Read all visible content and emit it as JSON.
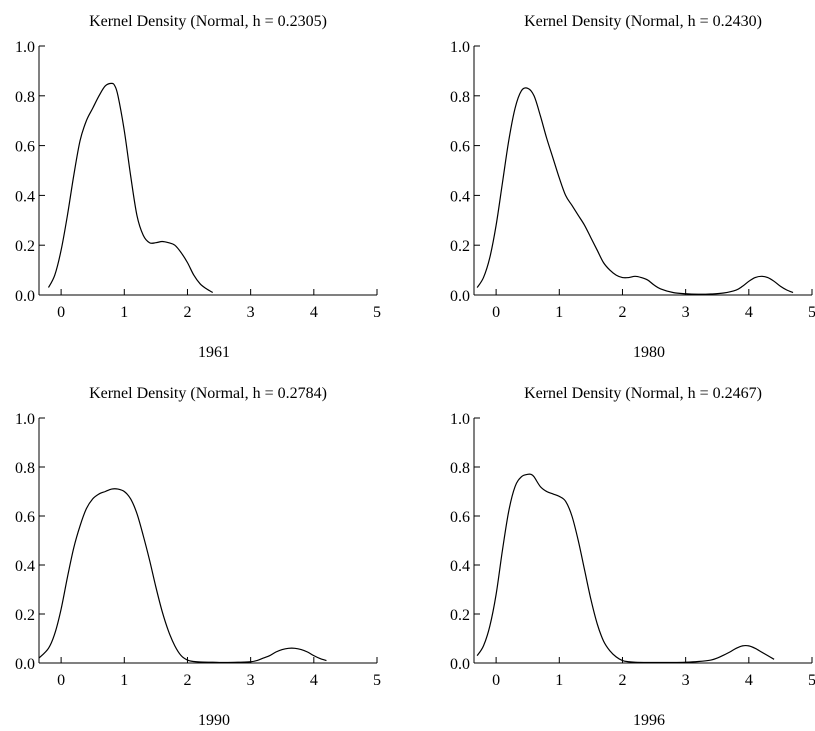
{
  "chart_data": [
    {
      "type": "line",
      "title": "Kernel Density (Normal, h = 0.2305)",
      "xlabel": "1961",
      "ylabel": "",
      "xlim": [
        -0.35,
        5
      ],
      "ylim": [
        0,
        1
      ],
      "xticks": [
        "0",
        "1",
        "2",
        "3",
        "4",
        "5"
      ],
      "yticks": [
        "0.0",
        "0.2",
        "0.4",
        "0.6",
        "0.8",
        "1.0"
      ],
      "grid": false,
      "series": [
        {
          "x": [
            -0.2,
            -0.1,
            0.0,
            0.1,
            0.2,
            0.3,
            0.4,
            0.5,
            0.6,
            0.7,
            0.8,
            0.85,
            0.9,
            1.0,
            1.1,
            1.2,
            1.3,
            1.4,
            1.5,
            1.6,
            1.7,
            1.8,
            1.9,
            2.0,
            2.1,
            2.2,
            2.3,
            2.4
          ],
          "y": [
            0.03,
            0.08,
            0.18,
            0.32,
            0.48,
            0.62,
            0.7,
            0.75,
            0.8,
            0.84,
            0.85,
            0.84,
            0.8,
            0.66,
            0.48,
            0.32,
            0.24,
            0.21,
            0.21,
            0.215,
            0.21,
            0.2,
            0.17,
            0.13,
            0.08,
            0.045,
            0.025,
            0.01
          ]
        }
      ]
    },
    {
      "type": "line",
      "title": "Kernel Density (Normal, h = 0.2430)",
      "xlabel": "1980",
      "ylabel": "",
      "xlim": [
        -0.35,
        5
      ],
      "ylim": [
        0,
        1
      ],
      "xticks": [
        "0",
        "1",
        "2",
        "3",
        "4",
        "5"
      ],
      "yticks": [
        "0.0",
        "0.2",
        "0.4",
        "0.6",
        "0.8",
        "1.0"
      ],
      "grid": false,
      "series": [
        {
          "x": [
            -0.3,
            -0.2,
            -0.1,
            0.0,
            0.1,
            0.2,
            0.3,
            0.4,
            0.5,
            0.6,
            0.7,
            0.8,
            0.9,
            1.0,
            1.1,
            1.2,
            1.3,
            1.4,
            1.5,
            1.6,
            1.7,
            1.8,
            1.9,
            2.0,
            2.1,
            2.2,
            2.3,
            2.4,
            2.5,
            2.6,
            2.8,
            3.0,
            3.2,
            3.4,
            3.6,
            3.8,
            3.9,
            4.0,
            4.1,
            4.2,
            4.3,
            4.4,
            4.5,
            4.6,
            4.7
          ],
          "y": [
            0.03,
            0.07,
            0.15,
            0.28,
            0.45,
            0.62,
            0.75,
            0.82,
            0.83,
            0.8,
            0.72,
            0.63,
            0.55,
            0.47,
            0.4,
            0.36,
            0.32,
            0.28,
            0.23,
            0.18,
            0.13,
            0.1,
            0.08,
            0.07,
            0.07,
            0.075,
            0.07,
            0.06,
            0.04,
            0.025,
            0.01,
            0.005,
            0.003,
            0.004,
            0.008,
            0.02,
            0.035,
            0.055,
            0.07,
            0.075,
            0.07,
            0.055,
            0.035,
            0.02,
            0.01
          ]
        }
      ]
    },
    {
      "type": "line",
      "title": "Kernel Density (Normal, h = 0.2784)",
      "xlabel": "1990",
      "ylabel": "",
      "xlim": [
        -0.35,
        5
      ],
      "ylim": [
        0,
        1
      ],
      "xticks": [
        "0",
        "1",
        "2",
        "3",
        "4",
        "5"
      ],
      "yticks": [
        "0.0",
        "0.2",
        "0.4",
        "0.6",
        "0.8",
        "1.0"
      ],
      "grid": false,
      "series": [
        {
          "x": [
            -0.35,
            -0.2,
            -0.1,
            0.0,
            0.1,
            0.2,
            0.3,
            0.4,
            0.5,
            0.6,
            0.7,
            0.8,
            0.9,
            1.0,
            1.1,
            1.2,
            1.3,
            1.4,
            1.5,
            1.6,
            1.7,
            1.8,
            1.9,
            2.0,
            2.1,
            2.2,
            2.4,
            2.6,
            2.8,
            3.0,
            3.1,
            3.2,
            3.3,
            3.4,
            3.5,
            3.6,
            3.7,
            3.8,
            3.9,
            4.0,
            4.1,
            4.2
          ],
          "y": [
            0.02,
            0.06,
            0.12,
            0.22,
            0.35,
            0.47,
            0.56,
            0.63,
            0.67,
            0.69,
            0.7,
            0.71,
            0.71,
            0.7,
            0.67,
            0.61,
            0.52,
            0.42,
            0.31,
            0.21,
            0.13,
            0.07,
            0.03,
            0.012,
            0.006,
            0.004,
            0.003,
            0.002,
            0.003,
            0.005,
            0.01,
            0.02,
            0.03,
            0.045,
            0.055,
            0.06,
            0.06,
            0.055,
            0.045,
            0.03,
            0.018,
            0.01
          ]
        }
      ]
    },
    {
      "type": "line",
      "title": "Kernel Density (Normal, h = 0.2467)",
      "xlabel": "1996",
      "ylabel": "",
      "xlim": [
        -0.35,
        5
      ],
      "ylim": [
        0,
        1
      ],
      "xticks": [
        "0",
        "1",
        "2",
        "3",
        "4",
        "5"
      ],
      "yticks": [
        "0.0",
        "0.2",
        "0.4",
        "0.6",
        "0.8",
        "1.0"
      ],
      "grid": false,
      "series": [
        {
          "x": [
            -0.3,
            -0.2,
            -0.1,
            0.0,
            0.1,
            0.2,
            0.3,
            0.4,
            0.5,
            0.55,
            0.6,
            0.7,
            0.8,
            0.9,
            1.0,
            1.1,
            1.2,
            1.3,
            1.4,
            1.5,
            1.6,
            1.7,
            1.8,
            1.9,
            2.0,
            2.1,
            2.2,
            2.4,
            2.6,
            2.8,
            3.0,
            3.2,
            3.4,
            3.5,
            3.6,
            3.7,
            3.8,
            3.9,
            4.0,
            4.1,
            4.2,
            4.3,
            4.4
          ],
          "y": [
            0.03,
            0.07,
            0.15,
            0.28,
            0.46,
            0.62,
            0.72,
            0.76,
            0.77,
            0.77,
            0.76,
            0.72,
            0.7,
            0.69,
            0.68,
            0.66,
            0.6,
            0.5,
            0.38,
            0.26,
            0.16,
            0.09,
            0.05,
            0.025,
            0.01,
            0.005,
            0.003,
            0.002,
            0.002,
            0.002,
            0.003,
            0.006,
            0.012,
            0.02,
            0.032,
            0.045,
            0.06,
            0.07,
            0.07,
            0.06,
            0.045,
            0.03,
            0.015
          ]
        }
      ]
    }
  ]
}
